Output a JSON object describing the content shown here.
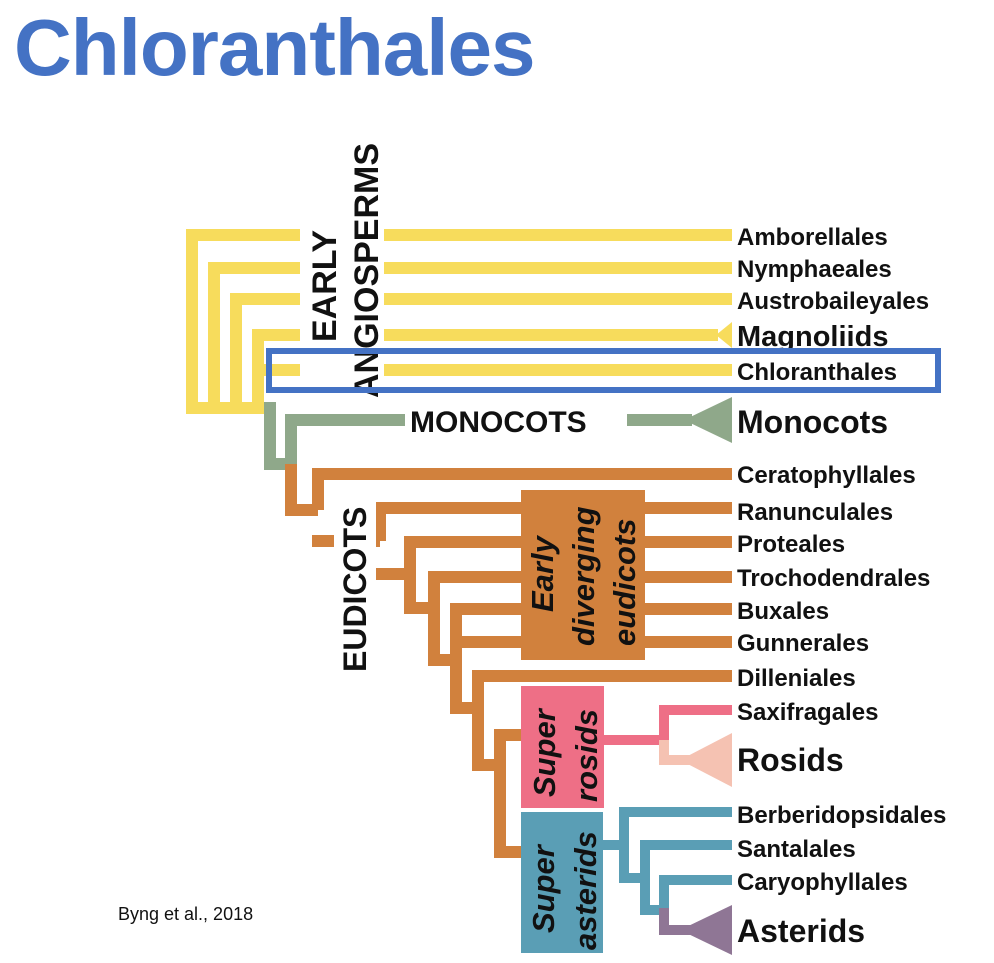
{
  "title": "Chloranthales",
  "citation": "Byng et al., 2018",
  "colors": {
    "title": "#4472c4",
    "early_angiosperms": "#f7dc5c",
    "monocots": "#8fa88a",
    "eudicots": "#d1813d",
    "superrosids_stem": "#ee6f86",
    "rosids_clade": "#f5c2b2",
    "superasterids": "#5a9eb5",
    "asterids_clade": "#8f7695",
    "highlight_box": "#4472c4"
  },
  "groups": {
    "early_line1": "EARLY",
    "early_line2": "ANGIOSPERMS",
    "monocots": "MONOCOTS",
    "eudicots": "EUDICOTS",
    "early_diverging": [
      "Early",
      "diverging",
      "eudicots"
    ],
    "superrosids": [
      "Super",
      "rosids"
    ],
    "superasterids": [
      "Super",
      "asterids"
    ]
  },
  "taxa": [
    "Amborellales",
    "Nymphaeales",
    "Austrobaileyales",
    "Magnoliids",
    "Chloranthales",
    "Monocots",
    "Ceratophyllales",
    "Ranunculales",
    "Proteales",
    "Trochodendrales",
    "Buxales",
    "Gunnerales",
    "Dilleniales",
    "Saxifragales",
    "Rosids",
    "Berberidopsidales",
    "Santalales",
    "Caryophyllales",
    "Asterids"
  ],
  "highlighted_taxon": "Chloranthales"
}
